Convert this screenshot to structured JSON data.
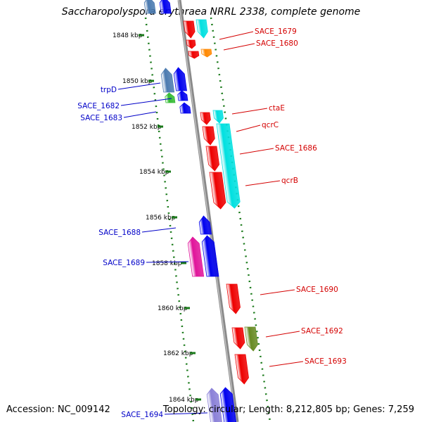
{
  "title": "Saccharopolyspora erythraea NRRL 2338, complete genome",
  "accession_label": "Accession: NC_009142",
  "topology_label": "Topology: circular; Length: 8,212,805 bp; Genes: 7,259",
  "colors": {
    "backbone": "#8a8a8a",
    "tick": "#1a7a1a",
    "label_forward": "#d40000",
    "label_reverse": "#0000c8"
  },
  "kbp_labels": [
    {
      "text": "1848 kbp",
      "kbp": 1848
    },
    {
      "text": "1850 kbp",
      "kbp": 1850
    },
    {
      "text": "1852 kbp",
      "kbp": 1852
    },
    {
      "text": "1854 kbp",
      "kbp": 1854
    },
    {
      "text": "1856 kbp",
      "kbp": 1856
    },
    {
      "text": "1858 kbp",
      "kbp": 1858
    },
    {
      "text": "1860 kbp",
      "kbp": 1860
    },
    {
      "text": "1862 kbp",
      "kbp": 1862
    },
    {
      "text": "1864 kbp",
      "kbp": 1864
    }
  ],
  "gene_labels": [
    {
      "text": "SACE_1679",
      "strand": "forward"
    },
    {
      "text": "SACE_1680",
      "strand": "forward"
    },
    {
      "text": "trpD",
      "strand": "reverse"
    },
    {
      "text": "SACE_1682",
      "strand": "reverse"
    },
    {
      "text": "SACE_1683",
      "strand": "reverse"
    },
    {
      "text": "ctaE",
      "strand": "forward"
    },
    {
      "text": "qcrC",
      "strand": "forward"
    },
    {
      "text": "SACE_1686",
      "strand": "forward"
    },
    {
      "text": "qcrB",
      "strand": "forward"
    },
    {
      "text": "SACE_1688",
      "strand": "reverse"
    },
    {
      "text": "SACE_1689",
      "strand": "reverse"
    },
    {
      "text": "SACE_1690",
      "strand": "forward"
    },
    {
      "text": "SACE_1692",
      "strand": "forward"
    },
    {
      "text": "SACE_1693",
      "strand": "forward"
    },
    {
      "text": "SACE_1694",
      "strand": "reverse"
    }
  ]
}
